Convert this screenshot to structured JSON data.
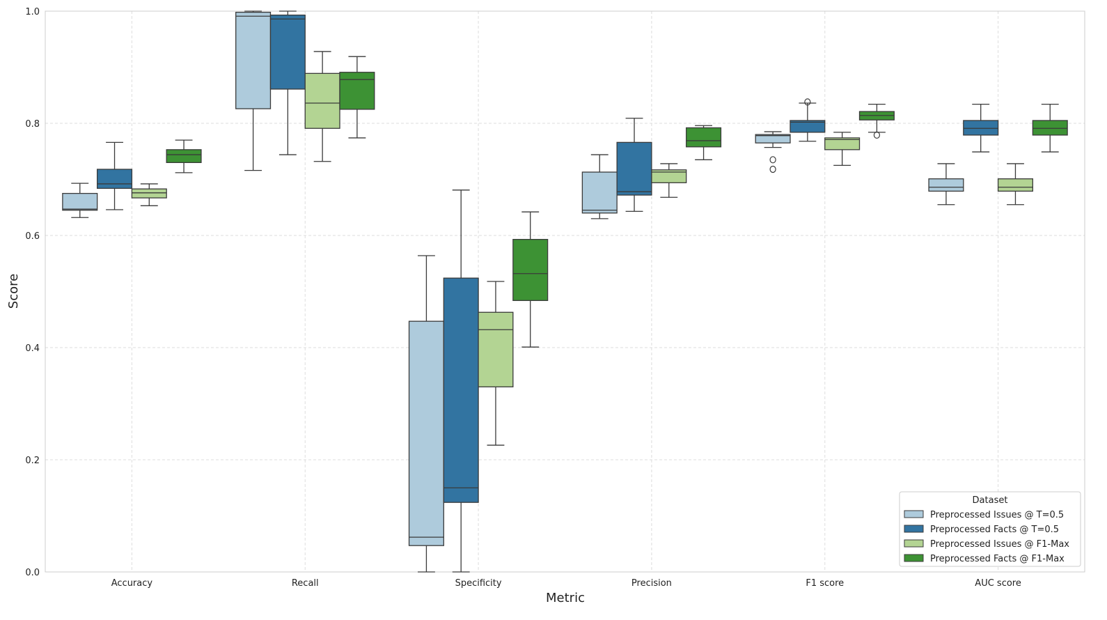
{
  "chart_data": {
    "type": "box",
    "title": "",
    "xlabel": "Metric",
    "ylabel": "Score",
    "ylim": [
      0,
      1
    ],
    "yticks": [
      "0.0",
      "0.2",
      "0.4",
      "0.6",
      "0.8",
      "1.0"
    ],
    "grid": true,
    "legend": {
      "title": "Dataset",
      "placement": "bottom-right"
    },
    "categories": [
      "Accuracy",
      "Recall",
      "Specificity",
      "Precision",
      "F1 score",
      "AUC score"
    ],
    "series": [
      {
        "name": "Preprocessed Issues @ T=0.5",
        "color": "#aecbdc",
        "boxes": [
          {
            "whislo": 0.632,
            "q1": 0.645,
            "med": 0.647,
            "q3": 0.675,
            "whishi": 0.693,
            "fliers": []
          },
          {
            "whislo": 0.716,
            "q1": 0.826,
            "med": 0.991,
            "q3": 0.998,
            "whishi": 1.0,
            "fliers": []
          },
          {
            "whislo": 0.0,
            "q1": 0.047,
            "med": 0.062,
            "q3": 0.447,
            "whishi": 0.564,
            "fliers": []
          },
          {
            "whislo": 0.63,
            "q1": 0.64,
            "med": 0.645,
            "q3": 0.713,
            "whishi": 0.744,
            "fliers": []
          },
          {
            "whislo": 0.757,
            "q1": 0.765,
            "med": 0.778,
            "q3": 0.78,
            "whishi": 0.785,
            "fliers": [
              0.735,
              0.718
            ]
          },
          {
            "whislo": 0.655,
            "q1": 0.679,
            "med": 0.686,
            "q3": 0.701,
            "whishi": 0.728,
            "fliers": []
          }
        ]
      },
      {
        "name": "Preprocessed Facts @ T=0.5",
        "color": "#3274a1",
        "boxes": [
          {
            "whislo": 0.646,
            "q1": 0.684,
            "med": 0.692,
            "q3": 0.718,
            "whishi": 0.766,
            "fliers": []
          },
          {
            "whislo": 0.744,
            "q1": 0.861,
            "med": 0.986,
            "q3": 0.993,
            "whishi": 1.0,
            "fliers": []
          },
          {
            "whislo": 0.0,
            "q1": 0.124,
            "med": 0.15,
            "q3": 0.524,
            "whishi": 0.681,
            "fliers": []
          },
          {
            "whislo": 0.643,
            "q1": 0.672,
            "med": 0.678,
            "q3": 0.766,
            "whishi": 0.809,
            "fliers": []
          },
          {
            "whislo": 0.768,
            "q1": 0.784,
            "med": 0.802,
            "q3": 0.805,
            "whishi": 0.836,
            "fliers": [
              0.838
            ]
          },
          {
            "whislo": 0.749,
            "q1": 0.779,
            "med": 0.791,
            "q3": 0.805,
            "whishi": 0.834,
            "fliers": []
          }
        ]
      },
      {
        "name": "Preprocessed Issues @ F1-Max",
        "color": "#b3d493",
        "boxes": [
          {
            "whislo": 0.653,
            "q1": 0.667,
            "med": 0.676,
            "q3": 0.683,
            "whishi": 0.692,
            "fliers": []
          },
          {
            "whislo": 0.732,
            "q1": 0.791,
            "med": 0.836,
            "q3": 0.889,
            "whishi": 0.928,
            "fliers": []
          },
          {
            "whislo": 0.226,
            "q1": 0.33,
            "med": 0.432,
            "q3": 0.463,
            "whishi": 0.518,
            "fliers": []
          },
          {
            "whislo": 0.668,
            "q1": 0.694,
            "med": 0.713,
            "q3": 0.717,
            "whishi": 0.728,
            "fliers": []
          },
          {
            "whislo": 0.725,
            "q1": 0.753,
            "med": 0.771,
            "q3": 0.774,
            "whishi": 0.784,
            "fliers": []
          },
          {
            "whislo": 0.655,
            "q1": 0.679,
            "med": 0.686,
            "q3": 0.701,
            "whishi": 0.728,
            "fliers": []
          }
        ]
      },
      {
        "name": "Preprocessed Facts @ F1-Max",
        "color": "#3d9234",
        "boxes": [
          {
            "whislo": 0.712,
            "q1": 0.73,
            "med": 0.744,
            "q3": 0.753,
            "whishi": 0.77,
            "fliers": []
          },
          {
            "whislo": 0.774,
            "q1": 0.825,
            "med": 0.878,
            "q3": 0.891,
            "whishi": 0.919,
            "fliers": []
          },
          {
            "whislo": 0.401,
            "q1": 0.484,
            "med": 0.532,
            "q3": 0.593,
            "whishi": 0.642,
            "fliers": []
          },
          {
            "whislo": 0.735,
            "q1": 0.758,
            "med": 0.769,
            "q3": 0.792,
            "whishi": 0.796,
            "fliers": []
          },
          {
            "whislo": 0.784,
            "q1": 0.806,
            "med": 0.814,
            "q3": 0.821,
            "whishi": 0.834,
            "fliers": [
              0.779
            ]
          },
          {
            "whislo": 0.749,
            "q1": 0.779,
            "med": 0.791,
            "q3": 0.805,
            "whishi": 0.834,
            "fliers": []
          }
        ]
      }
    ]
  }
}
